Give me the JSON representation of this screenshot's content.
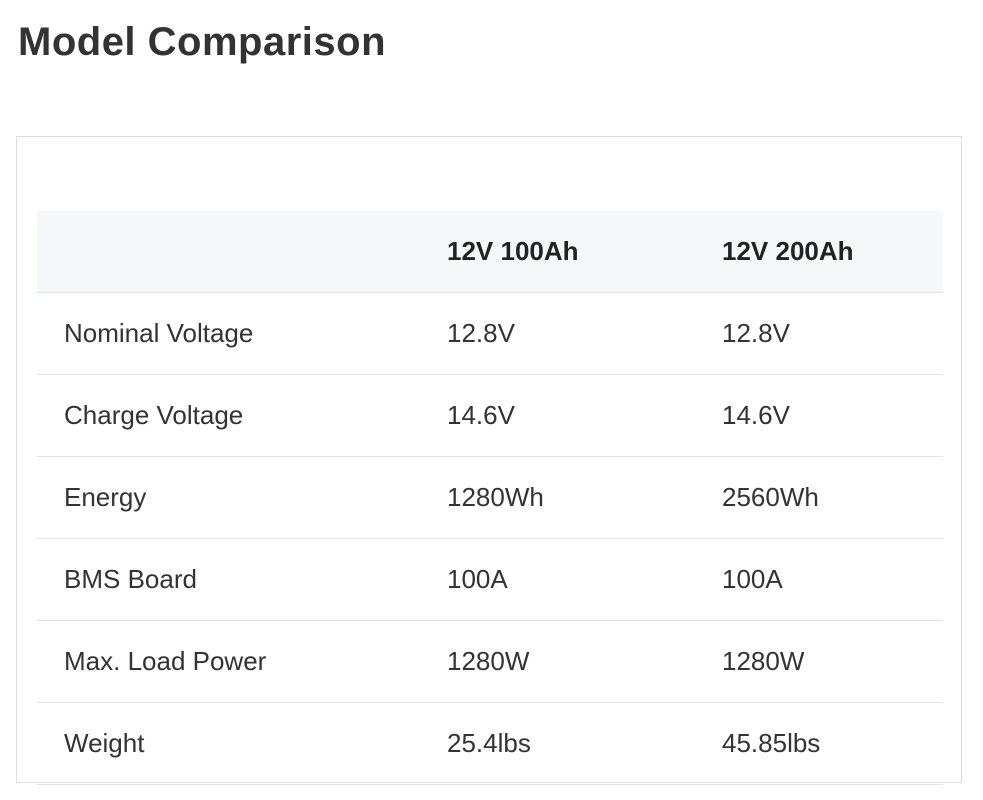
{
  "header": {
    "title": "Model Comparison"
  },
  "table": {
    "columns": [
      "12V 100Ah",
      "12V 200Ah"
    ],
    "rows": [
      [
        "Nominal Voltage",
        "12.8V",
        "12.8V"
      ],
      [
        "Charge Voltage",
        "14.6V",
        "14.6V"
      ],
      [
        "Energy",
        "1280Wh",
        "2560Wh"
      ],
      [
        "BMS Board",
        "100A",
        "100A"
      ],
      [
        "Max. Load Power",
        "1280W",
        "1280W"
      ],
      [
        "Weight",
        "25.4lbs",
        "45.85lbs"
      ]
    ]
  }
}
